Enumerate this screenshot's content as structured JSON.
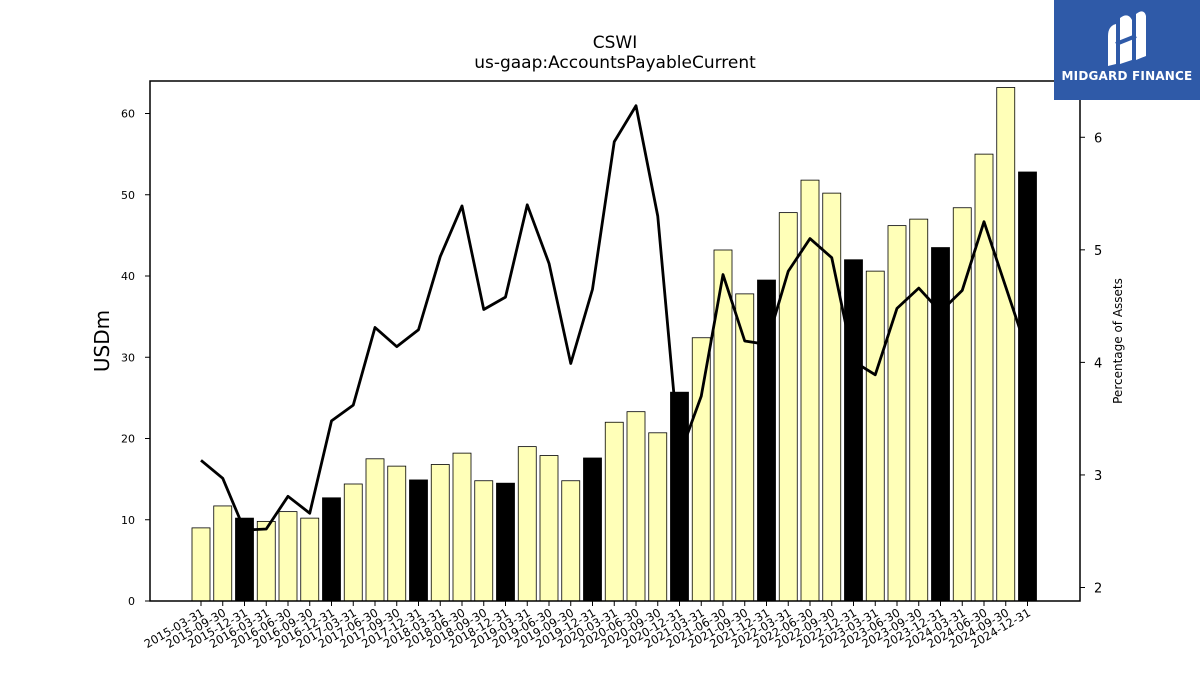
{
  "chart_data": {
    "type": "bar",
    "title": "CSWI",
    "subtitle": "us-gaap:AccountsPayableCurrent",
    "ylabel": "USDm",
    "y2label": "Percentage of Assets",
    "ylim": [
      0,
      64
    ],
    "y2lim": [
      1.88,
      6.5
    ],
    "yticks": [
      0,
      10,
      20,
      30,
      40,
      50,
      60
    ],
    "y2ticks": [
      2,
      3,
      4,
      5,
      6
    ],
    "categories": [
      "2015-03-31",
      "2015-09-30",
      "2015-12-31",
      "2016-03-31",
      "2016-06-30",
      "2016-09-30",
      "2016-12-31",
      "2017-03-31",
      "2017-06-30",
      "2017-09-30",
      "2017-12-31",
      "2018-03-31",
      "2018-06-30",
      "2018-09-30",
      "2018-12-31",
      "2019-03-31",
      "2019-06-30",
      "2019-09-30",
      "2019-12-31",
      "2020-03-31",
      "2020-06-30",
      "2020-09-30",
      "2020-12-31",
      "2021-03-31",
      "2021-06-30",
      "2021-09-30",
      "2021-12-31",
      "2022-03-31",
      "2022-06-30",
      "2022-09-30",
      "2022-12-31",
      "2023-03-31",
      "2023-06-30",
      "2023-09-30",
      "2023-12-31",
      "2024-03-31",
      "2024-06-30",
      "2024-09-30",
      "2024-12-31"
    ],
    "series": [
      {
        "kind": "bar",
        "axis": "left",
        "values": [
          9.0,
          11.7,
          10.2,
          9.8,
          11.0,
          10.2,
          12.7,
          14.4,
          17.5,
          16.6,
          14.9,
          16.8,
          18.2,
          14.8,
          14.5,
          19.0,
          17.9,
          14.8,
          17.6,
          22.0,
          23.3,
          20.7,
          25.7,
          32.4,
          43.2,
          37.8,
          39.5,
          47.8,
          51.8,
          50.2,
          42.0,
          40.6,
          46.2,
          47.0,
          43.5,
          48.4,
          55.0,
          63.2,
          52.8
        ],
        "highlight": [
          false,
          false,
          true,
          false,
          false,
          false,
          true,
          false,
          false,
          false,
          true,
          false,
          false,
          false,
          true,
          false,
          false,
          false,
          true,
          false,
          false,
          false,
          true,
          false,
          false,
          false,
          true,
          false,
          false,
          false,
          true,
          false,
          false,
          false,
          true,
          false,
          false,
          false,
          true
        ]
      },
      {
        "kind": "line",
        "axis": "right",
        "values": [
          3.13,
          2.97,
          2.51,
          2.52,
          2.81,
          2.66,
          3.48,
          3.62,
          4.31,
          4.14,
          4.29,
          4.94,
          5.39,
          4.47,
          4.58,
          5.4,
          4.88,
          3.99,
          4.65,
          5.96,
          6.28,
          5.3,
          3.17,
          3.7,
          4.78,
          4.19,
          4.16,
          4.81,
          5.1,
          4.93,
          4.01,
          3.89,
          4.48,
          4.66,
          4.45,
          4.64,
          5.25,
          4.67,
          4.09
        ]
      }
    ],
    "colors": {
      "bar": "#ffffb8",
      "bar_highlight": "#000000",
      "bar_edge": "#000000",
      "line": "#000000"
    },
    "grid": false
  },
  "logo": {
    "text": "MIDGARD FINANCE",
    "icon": "midgard-logo-icon"
  }
}
